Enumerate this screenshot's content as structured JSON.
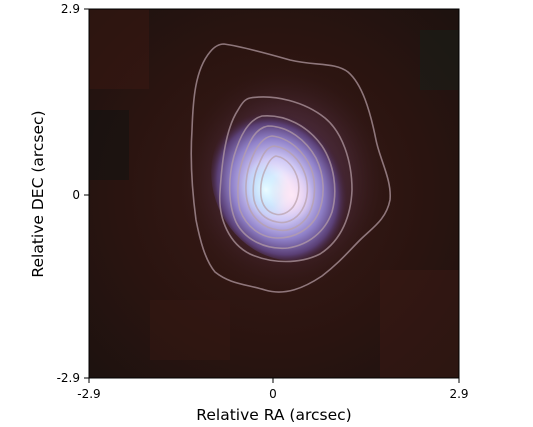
{
  "figure": {
    "xlabel": "Relative RA (arcsec)",
    "ylabel": "Relative DEC (arcsec)",
    "x_ticks": [
      {
        "value": -2.9,
        "label": "-2.9"
      },
      {
        "value": 0,
        "label": "0"
      },
      {
        "value": 2.9,
        "label": "2.9"
      }
    ],
    "y_ticks": [
      {
        "value": 2.9,
        "label": "2.9"
      },
      {
        "value": 0,
        "label": "0"
      },
      {
        "value": -2.9,
        "label": "-2.9"
      }
    ],
    "xlim": [
      -2.9,
      2.9
    ],
    "ylim": [
      -2.9,
      2.9
    ],
    "image": {
      "description_kind": "false-color composite",
      "background_color": "#2a1410",
      "source_center": [
        0.2,
        0.15
      ],
      "source_colors": {
        "core": "#ffffff",
        "inner": "#dcd6ff",
        "mid": "#7f6fbf",
        "outer": "#3a1a22"
      },
      "contour_color": "#b8a0a8",
      "contour_count": 7
    }
  }
}
